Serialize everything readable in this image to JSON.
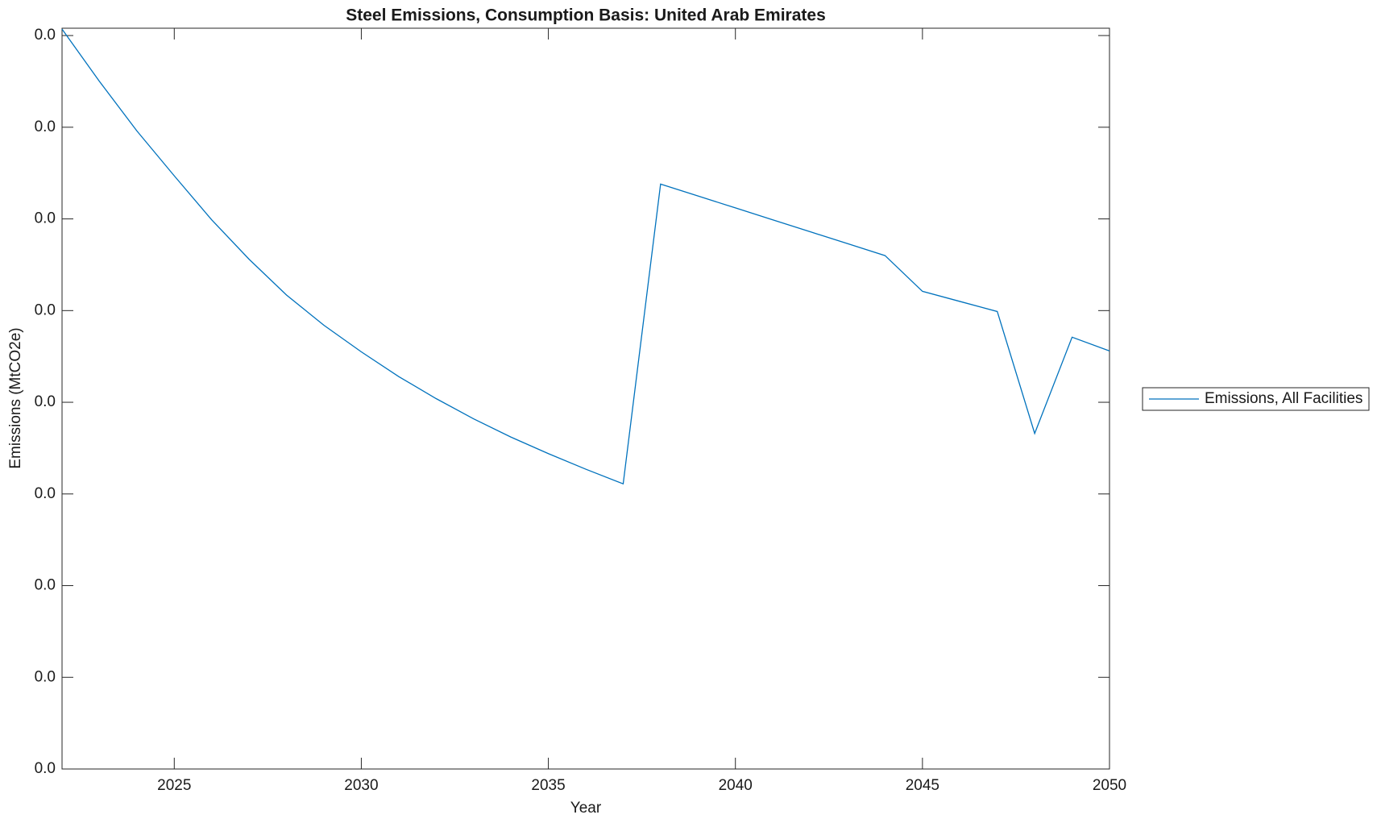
{
  "chart_data": {
    "type": "line",
    "title": "Steel Emissions, Consumption Basis: United Arab Emirates",
    "x_label": "Year",
    "y_label": "Emissions (MtCO2e)",
    "x": [
      2022,
      2023,
      2024,
      2025,
      2026,
      2027,
      2028,
      2029,
      2030,
      2031,
      2032,
      2033,
      2034,
      2035,
      2036,
      2037,
      2038,
      2039,
      2040,
      2041,
      2042,
      2043,
      2044,
      2045,
      2046,
      2047,
      2048,
      2049,
      2050
    ],
    "series": [
      {
        "name": "Emissions, All Facilities",
        "color": "#0072bd",
        "values": [
          0.0807,
          0.075,
          0.0696,
          0.0647,
          0.0599,
          0.0556,
          0.0517,
          0.0484,
          0.0455,
          0.0428,
          0.0404,
          0.0382,
          0.0362,
          0.0344,
          0.0327,
          0.0311,
          0.0638,
          0.0625,
          0.0612,
          0.0599,
          0.0586,
          0.0573,
          0.056,
          0.0521,
          0.051,
          0.0499,
          0.0366,
          0.0471,
          0.0456
        ]
      }
    ],
    "xlim": [
      2022,
      2050
    ],
    "xticks": [
      2025,
      2030,
      2035,
      2040,
      2045,
      2050
    ],
    "ylim": [
      0,
      0.0808
    ],
    "yticks": [
      {
        "value": 0,
        "label": "0.0"
      },
      {
        "value": 0.01,
        "label": "0.0"
      },
      {
        "value": 0.02,
        "label": "0.0"
      },
      {
        "value": 0.03,
        "label": "0.0"
      },
      {
        "value": 0.04,
        "label": "0.0"
      },
      {
        "value": 0.05,
        "label": "0.0"
      },
      {
        "value": 0.06,
        "label": "0.0"
      },
      {
        "value": 0.07,
        "label": "0.0"
      },
      {
        "value": 0.08,
        "label": "0.0"
      }
    ],
    "grid": false,
    "legend": "east-outside"
  }
}
